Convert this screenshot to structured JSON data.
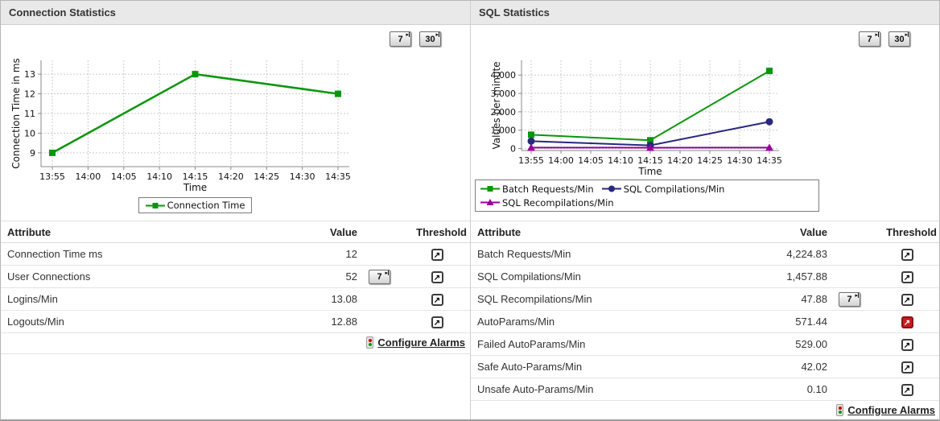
{
  "panels": [
    {
      "title": "Connection Statistics",
      "range_buttons": [
        {
          "label": "7"
        },
        {
          "label": "30"
        }
      ],
      "table": {
        "headers": {
          "attribute": "Attribute",
          "value": "Value",
          "threshold": "Threshold"
        },
        "rows": [
          {
            "attribute": "Connection Time ms",
            "value": "12",
            "range_button": null,
            "threshold": "normal"
          },
          {
            "attribute": "User Connections",
            "value": "52",
            "range_button": "7",
            "threshold": "normal"
          },
          {
            "attribute": "Logins/Min",
            "value": "13.08",
            "range_button": null,
            "threshold": "normal"
          },
          {
            "attribute": "Logouts/Min",
            "value": "12.88",
            "range_button": null,
            "threshold": "normal"
          }
        ],
        "footer_link": "Configure Alarms"
      }
    },
    {
      "title": "SQL Statistics",
      "range_buttons": [
        {
          "label": "7"
        },
        {
          "label": "30"
        }
      ],
      "table": {
        "headers": {
          "attribute": "Attribute",
          "value": "Value",
          "threshold": "Threshold"
        },
        "rows": [
          {
            "attribute": "Batch Requests/Min",
            "value": "4,224.83",
            "range_button": null,
            "threshold": "normal"
          },
          {
            "attribute": "SQL Compilations/Min",
            "value": "1,457.88",
            "range_button": null,
            "threshold": "normal"
          },
          {
            "attribute": "SQL Recompilations/Min",
            "value": "47.88",
            "range_button": "7",
            "threshold": "normal"
          },
          {
            "attribute": "AutoParams/Min",
            "value": "571.44",
            "range_button": null,
            "threshold": "alert"
          },
          {
            "attribute": "Failed AutoParams/Min",
            "value": "529.00",
            "range_button": null,
            "threshold": "normal"
          },
          {
            "attribute": "Safe Auto-Params/Min",
            "value": "42.02",
            "range_button": null,
            "threshold": "normal"
          },
          {
            "attribute": "Unsafe Auto-Params/Min",
            "value": "0.10",
            "range_button": null,
            "threshold": "normal"
          }
        ],
        "footer_link": "Configure Alarms"
      }
    }
  ],
  "icons": {
    "threshold_trend": "↗",
    "range_step": "▸"
  },
  "colors": {
    "series_green": "#0a960a",
    "series_navy": "#28287d",
    "series_purple": "#990099",
    "alert_red": "#c42020",
    "grid": "#cccccc",
    "axis": "#8a8a8a"
  },
  "chart_data": [
    {
      "type": "line",
      "title": "",
      "xlabel": "Time",
      "ylabel": "Connection Time in ms",
      "x_categories": [
        "13:55",
        "14:00",
        "14:05",
        "14:10",
        "14:15",
        "14:20",
        "14:25",
        "14:30",
        "14:35"
      ],
      "yticks": [
        9,
        10,
        11,
        12,
        13
      ],
      "ytick_labels": [
        "9",
        "10",
        "11",
        "12",
        "13"
      ],
      "ylim": [
        8.3,
        13.7
      ],
      "grid": true,
      "legend_position": "bottom-center",
      "series": [
        {
          "name": "Connection Time",
          "color": "#0a960a",
          "marker": "square",
          "x": [
            "13:55",
            "14:15",
            "14:35"
          ],
          "values": [
            9,
            13,
            12
          ]
        }
      ]
    },
    {
      "type": "line",
      "title": "",
      "xlabel": "Time",
      "ylabel": "Values per minute",
      "x_categories": [
        "13:55",
        "14:00",
        "14:05",
        "14:10",
        "14:15",
        "14:20",
        "14:25",
        "14:30",
        "14:35"
      ],
      "yticks": [
        0,
        1000,
        2000,
        3000,
        4000
      ],
      "ytick_labels": [
        "0",
        "1,000",
        "2,000",
        "3,000",
        "4,000"
      ],
      "ylim": [
        -110,
        4800
      ],
      "grid": true,
      "legend_position": "bottom-left-box",
      "series": [
        {
          "name": "Batch Requests/Min",
          "color": "#0a960a",
          "marker": "square",
          "x": [
            "13:55",
            "14:15",
            "14:35"
          ],
          "values": [
            750,
            450,
            4224.83
          ]
        },
        {
          "name": "SQL Compilations/Min",
          "color": "#28287d",
          "marker": "circle",
          "x": [
            "13:55",
            "14:15",
            "14:35"
          ],
          "values": [
            400,
            170,
            1457.88
          ]
        },
        {
          "name": "SQL Recompilations/Min",
          "color": "#990099",
          "marker": "triangle",
          "x": [
            "13:55",
            "14:15",
            "14:35"
          ],
          "values": [
            50,
            45,
            47.88
          ]
        }
      ]
    }
  ]
}
